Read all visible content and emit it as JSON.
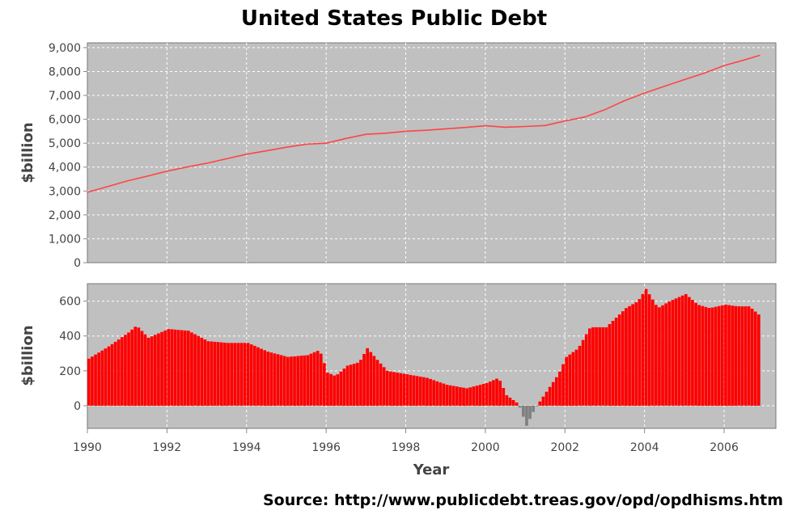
{
  "chart_data": [
    {
      "type": "line",
      "title": "United States Public Debt",
      "ylabel": "$billion",
      "xlabel": "",
      "xlim": [
        1990,
        2007.3
      ],
      "ylim": [
        0,
        9200
      ],
      "grid": true,
      "color": "#ff4444",
      "x_ticks": [
        1990,
        1992,
        1994,
        1996,
        1998,
        2000,
        2002,
        2004,
        2006
      ],
      "y_ticks": [
        0,
        1000,
        2000,
        3000,
        4000,
        5000,
        6000,
        7000,
        8000,
        9000
      ],
      "y_tick_labels": [
        "0",
        "1,000",
        "2,000",
        "3,000",
        "4,000",
        "5,000",
        "6,000",
        "7,000",
        "8,000",
        "9,000"
      ],
      "x": [
        1990.0,
        1990.5,
        1991.0,
        1991.5,
        1992.0,
        1992.5,
        1993.0,
        1993.5,
        1994.0,
        1994.5,
        1995.0,
        1995.5,
        1996.0,
        1996.5,
        1997.0,
        1997.5,
        1998.0,
        1998.5,
        1999.0,
        1999.5,
        2000.0,
        2000.5,
        2001.0,
        2001.5,
        2002.0,
        2002.5,
        2003.0,
        2003.5,
        2004.0,
        2004.5,
        2005.0,
        2005.5,
        2006.0,
        2006.5,
        2006.9
      ],
      "values": [
        2950,
        3180,
        3420,
        3620,
        3830,
        4000,
        4160,
        4350,
        4540,
        4680,
        4830,
        4960,
        5000,
        5200,
        5370,
        5420,
        5500,
        5540,
        5600,
        5660,
        5730,
        5670,
        5700,
        5740,
        5930,
        6100,
        6400,
        6780,
        7100,
        7380,
        7660,
        7930,
        8250,
        8480,
        8680
      ]
    },
    {
      "type": "bar",
      "title": "",
      "ylabel": "$billion",
      "xlabel": "Year",
      "xlim": [
        1990,
        2007.3
      ],
      "ylim": [
        -130,
        700
      ],
      "grid": true,
      "positive_color": "#ff0000",
      "negative_color": "#808080",
      "x_ticks": [
        1990,
        1992,
        1994,
        1996,
        1998,
        2000,
        2002,
        2004,
        2006
      ],
      "x_tick_labels": [
        "1990",
        "1992",
        "1994",
        "1996",
        "1998",
        "2000",
        "2002",
        "2004",
        "2006"
      ],
      "y_ticks": [
        0,
        200,
        400,
        600
      ],
      "y_tick_labels": [
        "0",
        "200",
        "400",
        "600"
      ],
      "x": [
        1990.0,
        1990.5,
        1991.0,
        1991.2,
        1991.5,
        1992.0,
        1992.5,
        1993.0,
        1993.5,
        1994.0,
        1994.5,
        1995.0,
        1995.5,
        1995.8,
        1996.0,
        1996.2,
        1996.5,
        1996.8,
        1997.0,
        1997.3,
        1997.5,
        1998.0,
        1998.5,
        1999.0,
        1999.5,
        2000.0,
        2000.3,
        2000.5,
        2000.8,
        2001.0,
        2001.2,
        2001.5,
        2001.8,
        2002.0,
        2002.3,
        2002.6,
        2003.0,
        2003.5,
        2003.8,
        2004.0,
        2004.3,
        2004.6,
        2005.0,
        2005.3,
        2005.6,
        2006.0,
        2006.3,
        2006.6,
        2006.9
      ],
      "values": [
        270,
        340,
        420,
        460,
        390,
        440,
        430,
        370,
        360,
        360,
        310,
        280,
        290,
        320,
        190,
        170,
        230,
        250,
        330,
        250,
        200,
        180,
        160,
        120,
        100,
        130,
        160,
        60,
        10,
        -115,
        -20,
        80,
        180,
        280,
        330,
        450,
        450,
        560,
        600,
        670,
        560,
        600,
        640,
        580,
        560,
        580,
        570,
        570,
        510
      ]
    }
  ],
  "source": "Source: http://www.publicdebt.treas.gov/opd/opdhisms.htm"
}
